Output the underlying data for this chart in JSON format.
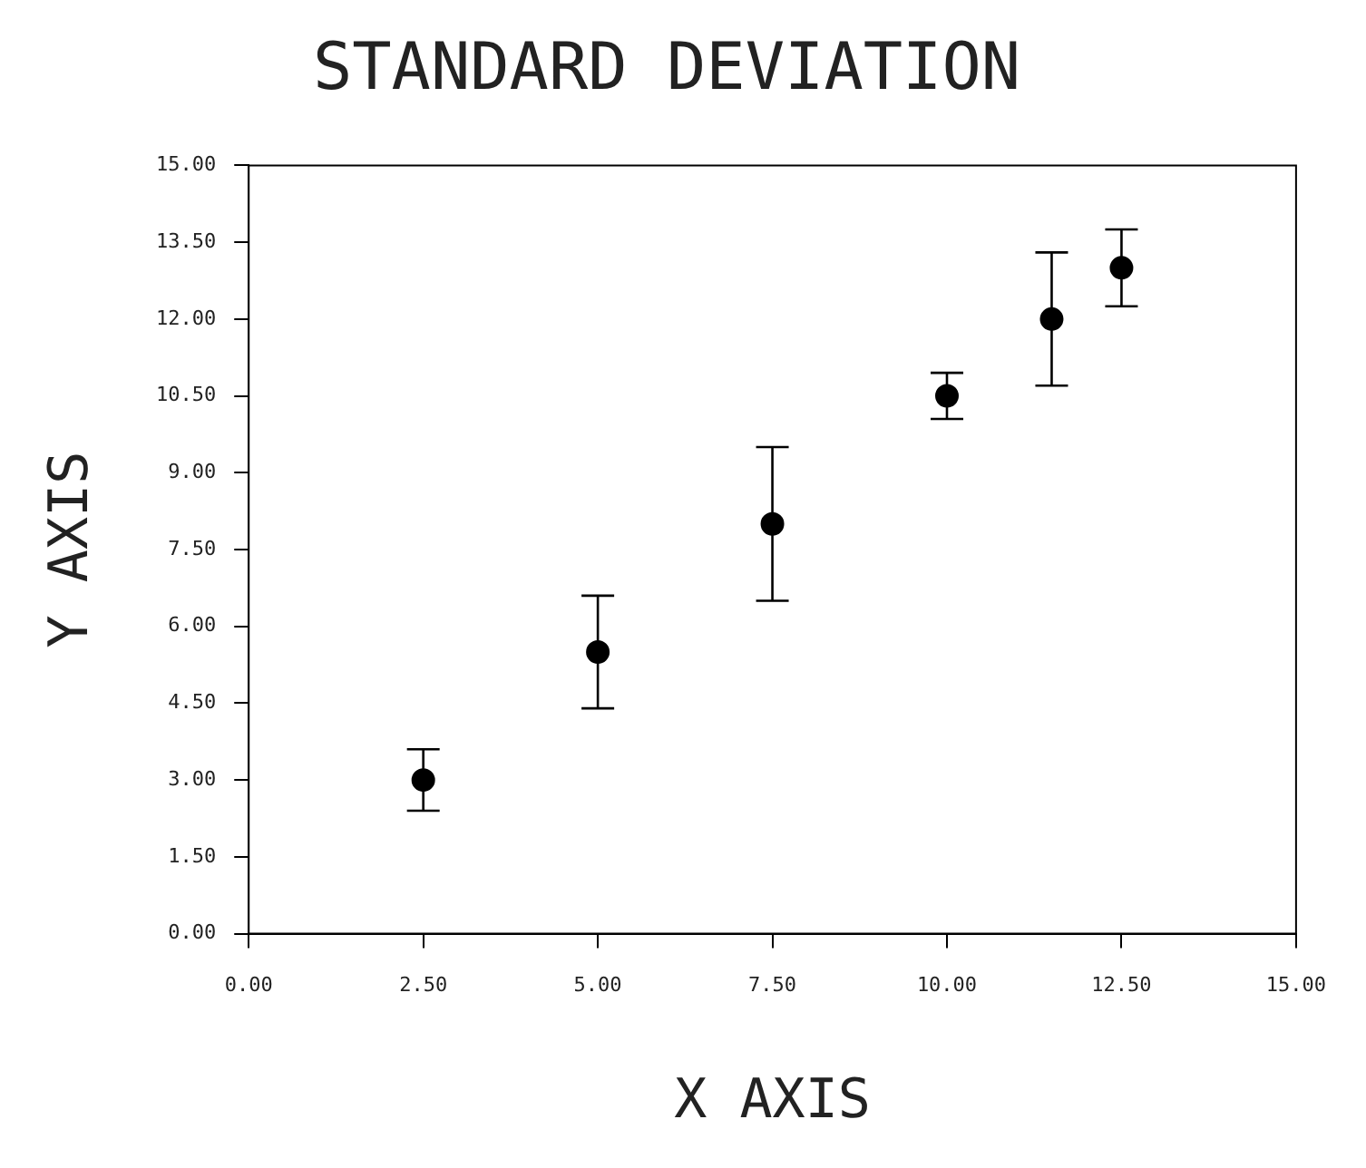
{
  "chart_data": {
    "type": "scatter",
    "title": "STANDARD DEVIATION",
    "xlabel": "X AXIS",
    "ylabel": "Y AXIS",
    "x": [
      2.5,
      5.0,
      7.5,
      10.0,
      11.5,
      12.5
    ],
    "series": [
      {
        "color": "#000000",
        "values": [
          3.0,
          5.5,
          8.0,
          10.5,
          12.0,
          13.0
        ],
        "errors": [
          0.6,
          1.1,
          1.5,
          0.45,
          1.3,
          0.75
        ]
      }
    ],
    "marker": "circle",
    "grid": false,
    "legend": false,
    "xlim": [
      0,
      15
    ],
    "xticks": [
      {
        "value": 0,
        "label": "0.00"
      },
      {
        "value": 2.5,
        "label": "2.50"
      },
      {
        "value": 5,
        "label": "5.00"
      },
      {
        "value": 7.5,
        "label": "7.50"
      },
      {
        "value": 10,
        "label": "10.00"
      },
      {
        "value": 12.5,
        "label": "12.50"
      },
      {
        "value": 15,
        "label": "15.00"
      }
    ],
    "ylim": [
      0,
      15
    ],
    "yticks": [
      {
        "value": 0,
        "label": "0.00"
      },
      {
        "value": 1.5,
        "label": "1.50"
      },
      {
        "value": 3,
        "label": "3.00"
      },
      {
        "value": 4.5,
        "label": "4.50"
      },
      {
        "value": 6,
        "label": "6.00"
      },
      {
        "value": 7.5,
        "label": "7.50"
      },
      {
        "value": 9,
        "label": "9.00"
      },
      {
        "value": 10.5,
        "label": "10.50"
      },
      {
        "value": 12,
        "label": "12.00"
      },
      {
        "value": 13.5,
        "label": "13.50"
      },
      {
        "value": 15,
        "label": "15.00"
      }
    ]
  }
}
